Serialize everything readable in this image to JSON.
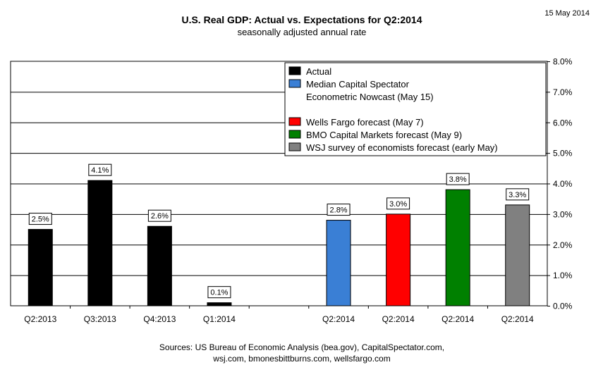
{
  "header": {
    "title": "U.S. Real GDP: Actual vs. Expectations for Q2:2014",
    "subtitle": "seasonally adjusted annual rate",
    "date": "15 May 2014"
  },
  "chart_data": {
    "type": "bar",
    "categories": [
      "Q2:2013",
      "Q3:2013",
      "Q4:2013",
      "Q1:2014",
      "",
      "Q2:2014",
      "Q2:2014",
      "Q2:2014",
      "Q2:2014"
    ],
    "values": [
      2.5,
      4.1,
      2.6,
      0.1,
      null,
      2.8,
      3.0,
      3.8,
      3.3
    ],
    "data_labels": [
      "2.5%",
      "4.1%",
      "2.6%",
      "0.1%",
      "",
      "2.8%",
      "3.0%",
      "3.8%",
      "3.3%"
    ],
    "series_index": [
      0,
      0,
      0,
      0,
      null,
      1,
      2,
      3,
      4
    ],
    "ylim": [
      0,
      8
    ],
    "y_ticks": [
      {
        "value": 0,
        "label": "0.0%"
      },
      {
        "value": 1,
        "label": "1.0%"
      },
      {
        "value": 2,
        "label": "2.0%"
      },
      {
        "value": 3,
        "label": "3.0%"
      },
      {
        "value": 4,
        "label": "4.0%"
      },
      {
        "value": 5,
        "label": "5.0%"
      },
      {
        "value": 6,
        "label": "6.0%"
      },
      {
        "value": 7,
        "label": "7.0%"
      },
      {
        "value": 8,
        "label": "8.0%"
      }
    ],
    "y_axis_side": "right",
    "grid": true,
    "legend_position": "top-right",
    "legend": [
      {
        "lines": [
          "Actual"
        ],
        "color": "#000000"
      },
      {
        "lines": [
          "Median Capital Spectator",
          "Econometric Nowcast (May 15)"
        ],
        "color": "#3a7fd5"
      },
      {
        "lines": [
          "Wells Fargo forecast (May 7)"
        ],
        "color": "#ff0000"
      },
      {
        "lines": [
          "BMO Capital Markets forecast (May 9)"
        ],
        "color": "#008000"
      },
      {
        "lines": [
          "WSJ survey of economists forecast (early May)"
        ],
        "color": "#808080"
      }
    ]
  },
  "footer": {
    "line1": "Sources: US Bureau of Economic Analysis (bea.gov), CapitalSpectator.com,",
    "line2": "wsj.com,  bmonesbittburns.com, wellsfargo.com"
  }
}
